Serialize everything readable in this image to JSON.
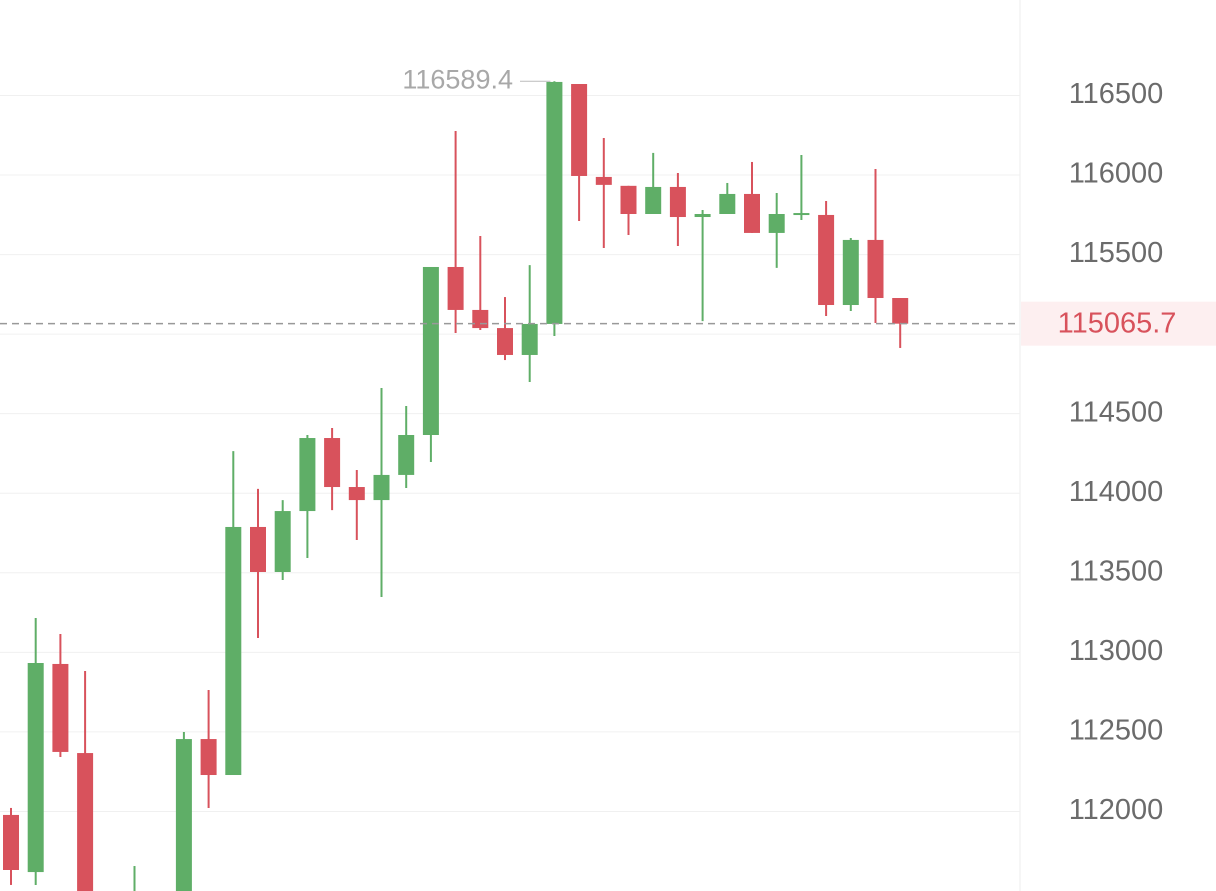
{
  "chart_data": {
    "type": "candlestick",
    "open": [
      111978,
      111619,
      112927,
      112367,
      null,
      111300,
      null,
      111400,
      112455,
      112229,
      113788,
      113505,
      113888,
      114347,
      114039,
      113957,
      114115,
      114366,
      115422,
      115152,
      115038,
      114869,
      115064,
      116572,
      115988,
      115932,
      115755,
      115925,
      115736,
      115755,
      115881,
      115636,
      115755,
      115749,
      115183,
      115592,
      115227
    ],
    "high": [
      112022,
      113216,
      113115,
      112883,
      null,
      111657,
      null,
      112499,
      112763,
      114265,
      114027,
      113957,
      114366,
      114410,
      114146,
      114661,
      114548,
      115422,
      116277,
      115617,
      115233,
      115434,
      116589.4,
      116572,
      116233,
      115932,
      116139,
      116013,
      115780,
      115950,
      116082,
      115887,
      116126,
      115837,
      115604,
      116038,
      115227
    ],
    "low": [
      111538,
      111538,
      112342,
      111000,
      null,
      111250,
      null,
      111300,
      112022,
      112229,
      113090,
      113455,
      113593,
      113894,
      113706,
      113348,
      114033,
      114196,
      115007,
      115026,
      114837,
      114699,
      114988,
      115711,
      115541,
      115623,
      115755,
      115554,
      115082,
      115755,
      115636,
      115416,
      115717,
      115114,
      115145,
      115070,
      114913
    ],
    "close": [
      111632,
      112933,
      112374,
      111300,
      null,
      111450,
      null,
      112455,
      112229,
      113788,
      113505,
      113888,
      114347,
      114039,
      113957,
      114115,
      114366,
      115422,
      115152,
      115038,
      114869,
      115064,
      116585,
      115994,
      115938,
      115755,
      115925,
      115736,
      115755,
      115881,
      115636,
      115755,
      115761,
      115183,
      115592,
      115227,
      115065.7
    ],
    "up_color": "#5fae67",
    "down_color": "#d8525c",
    "ylim": [
      111500,
      117100
    ],
    "yticks": [
      112000,
      112500,
      113000,
      113500,
      114000,
      114500,
      115000,
      115500,
      116000,
      116500
    ],
    "grid": true,
    "last_price": 115065.7,
    "high_label_index": 22
  }
}
